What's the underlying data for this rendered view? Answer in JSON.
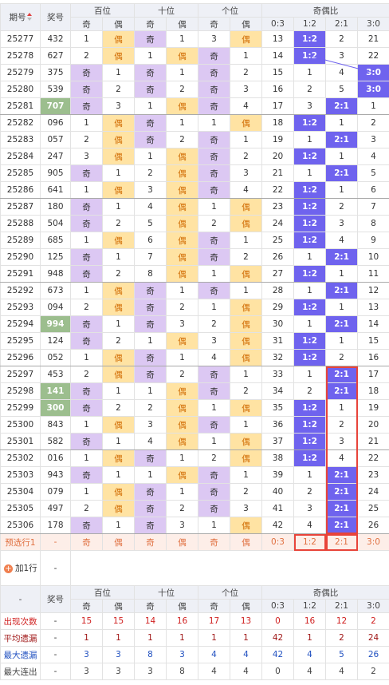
{
  "header": {
    "issue": "期号",
    "number": "奖号",
    "groups": [
      "百位",
      "十位",
      "个位",
      "奇偶比"
    ],
    "sub": [
      "奇",
      "偶",
      "奇",
      "偶",
      "奇",
      "偶",
      "0:3",
      "1:2",
      "2:1",
      "3:0"
    ]
  },
  "rows": [
    {
      "issue": "25277",
      "number": "432",
      "cells": [
        "1",
        "偶",
        "奇",
        "1",
        "3",
        "偶",
        "13",
        "1:2",
        "2",
        "21"
      ]
    },
    {
      "issue": "25278",
      "number": "627",
      "cells": [
        "2",
        "偶",
        "1",
        "偶",
        "奇",
        "1",
        "14",
        "1:2",
        "3",
        "22"
      ]
    },
    {
      "issue": "25279",
      "number": "375",
      "cells": [
        "奇",
        "1",
        "奇",
        "1",
        "奇",
        "2",
        "15",
        "1",
        "4",
        "3:0"
      ]
    },
    {
      "issue": "25280",
      "number": "539",
      "cells": [
        "奇",
        "2",
        "奇",
        "2",
        "奇",
        "3",
        "16",
        "2",
        "5",
        "3:0"
      ]
    },
    {
      "issue": "25281",
      "number": "707",
      "highlight": true,
      "cells": [
        "奇",
        "3",
        "1",
        "偶",
        "奇",
        "4",
        "17",
        "3",
        "2:1",
        "1"
      ]
    },
    {
      "issue": "25282",
      "number": "096",
      "cells": [
        "1",
        "偶",
        "奇",
        "1",
        "1",
        "偶",
        "18",
        "1:2",
        "1",
        "2"
      ]
    },
    {
      "issue": "25283",
      "number": "057",
      "cells": [
        "2",
        "偶",
        "奇",
        "2",
        "奇",
        "1",
        "19",
        "1",
        "2:1",
        "3"
      ]
    },
    {
      "issue": "25284",
      "number": "247",
      "cells": [
        "3",
        "偶",
        "1",
        "偶",
        "奇",
        "2",
        "20",
        "1:2",
        "1",
        "4"
      ]
    },
    {
      "issue": "25285",
      "number": "905",
      "cells": [
        "奇",
        "1",
        "2",
        "偶",
        "奇",
        "3",
        "21",
        "1",
        "2:1",
        "5"
      ]
    },
    {
      "issue": "25286",
      "number": "641",
      "cells": [
        "1",
        "偶",
        "3",
        "偶",
        "奇",
        "4",
        "22",
        "1:2",
        "1",
        "6"
      ]
    },
    {
      "issue": "25287",
      "number": "180",
      "cells": [
        "奇",
        "1",
        "4",
        "偶",
        "1",
        "偶",
        "23",
        "1:2",
        "2",
        "7"
      ]
    },
    {
      "issue": "25288",
      "number": "504",
      "cells": [
        "奇",
        "2",
        "5",
        "偶",
        "2",
        "偶",
        "24",
        "1:2",
        "3",
        "8"
      ]
    },
    {
      "issue": "25289",
      "number": "685",
      "cells": [
        "1",
        "偶",
        "6",
        "偶",
        "奇",
        "1",
        "25",
        "1:2",
        "4",
        "9"
      ]
    },
    {
      "issue": "25290",
      "number": "125",
      "cells": [
        "奇",
        "1",
        "7",
        "偶",
        "奇",
        "2",
        "26",
        "1",
        "2:1",
        "10"
      ]
    },
    {
      "issue": "25291",
      "number": "948",
      "cells": [
        "奇",
        "2",
        "8",
        "偶",
        "1",
        "偶",
        "27",
        "1:2",
        "1",
        "11"
      ]
    },
    {
      "issue": "25292",
      "number": "673",
      "cells": [
        "1",
        "偶",
        "奇",
        "1",
        "奇",
        "1",
        "28",
        "1",
        "2:1",
        "12"
      ]
    },
    {
      "issue": "25293",
      "number": "094",
      "cells": [
        "2",
        "偶",
        "奇",
        "2",
        "1",
        "偶",
        "29",
        "1:2",
        "1",
        "13"
      ]
    },
    {
      "issue": "25294",
      "number": "994",
      "highlight": true,
      "cells": [
        "奇",
        "1",
        "奇",
        "3",
        "2",
        "偶",
        "30",
        "1",
        "2:1",
        "14"
      ]
    },
    {
      "issue": "25295",
      "number": "124",
      "cells": [
        "奇",
        "2",
        "1",
        "偶",
        "3",
        "偶",
        "31",
        "1:2",
        "1",
        "15"
      ]
    },
    {
      "issue": "25296",
      "number": "052",
      "cells": [
        "1",
        "偶",
        "奇",
        "1",
        "4",
        "偶",
        "32",
        "1:2",
        "2",
        "16"
      ]
    },
    {
      "issue": "25297",
      "number": "453",
      "cells": [
        "2",
        "偶",
        "奇",
        "2",
        "奇",
        "1",
        "33",
        "1",
        "2:1",
        "17"
      ]
    },
    {
      "issue": "25298",
      "number": "141",
      "highlight": true,
      "cells": [
        "奇",
        "1",
        "1",
        "偶",
        "奇",
        "2",
        "34",
        "2",
        "2:1",
        "18"
      ]
    },
    {
      "issue": "25299",
      "number": "300",
      "highlight": true,
      "cells": [
        "奇",
        "2",
        "2",
        "偶",
        "1",
        "偶",
        "35",
        "1:2",
        "1",
        "19"
      ]
    },
    {
      "issue": "25300",
      "number": "843",
      "cells": [
        "1",
        "偶",
        "3",
        "偶",
        "奇",
        "1",
        "36",
        "1:2",
        "2",
        "20"
      ]
    },
    {
      "issue": "25301",
      "number": "582",
      "cells": [
        "奇",
        "1",
        "4",
        "偶",
        "1",
        "偶",
        "37",
        "1:2",
        "3",
        "21"
      ]
    },
    {
      "issue": "25302",
      "number": "016",
      "cells": [
        "1",
        "偶",
        "奇",
        "1",
        "2",
        "偶",
        "38",
        "1:2",
        "4",
        "22"
      ]
    },
    {
      "issue": "25303",
      "number": "943",
      "cells": [
        "奇",
        "1",
        "1",
        "偶",
        "奇",
        "1",
        "39",
        "1",
        "2:1",
        "23"
      ]
    },
    {
      "issue": "25304",
      "number": "079",
      "cells": [
        "1",
        "偶",
        "奇",
        "1",
        "奇",
        "2",
        "40",
        "2",
        "2:1",
        "24"
      ]
    },
    {
      "issue": "25305",
      "number": "497",
      "cells": [
        "2",
        "偶",
        "奇",
        "2",
        "奇",
        "3",
        "41",
        "3",
        "2:1",
        "25"
      ]
    },
    {
      "issue": "25306",
      "number": "178",
      "cells": [
        "奇",
        "1",
        "奇",
        "3",
        "1",
        "偶",
        "42",
        "4",
        "2:1",
        "26"
      ]
    }
  ],
  "preselect": {
    "label": "预选行1",
    "number": "-",
    "cells": [
      "奇",
      "偶",
      "奇",
      "偶",
      "奇",
      "偶",
      "0:3",
      "1:2",
      "2:1",
      "3:0"
    ]
  },
  "add_row": {
    "label": "加1行",
    "value": "-"
  },
  "footer_header": {
    "issue": "-",
    "number": "奖号",
    "groups": [
      "百位",
      "十位",
      "个位",
      "奇偶比"
    ],
    "sub": [
      "奇",
      "偶",
      "奇",
      "偶",
      "奇",
      "偶",
      "0:3",
      "1:2",
      "2:1",
      "3:0"
    ]
  },
  "stats": [
    {
      "label": "出现次数",
      "values": [
        15,
        15,
        14,
        16,
        17,
        13,
        0,
        16,
        12,
        2
      ]
    },
    {
      "label": "平均遗漏",
      "values": [
        1,
        1,
        1,
        1,
        1,
        1,
        42,
        1,
        2,
        24
      ]
    },
    {
      "label": "最大遗漏",
      "values": [
        3,
        3,
        8,
        3,
        4,
        4,
        42,
        4,
        5,
        26
      ]
    },
    {
      "label": "最大连出",
      "values": [
        3,
        3,
        3,
        8,
        4,
        4,
        0,
        4,
        4,
        2
      ]
    }
  ]
}
